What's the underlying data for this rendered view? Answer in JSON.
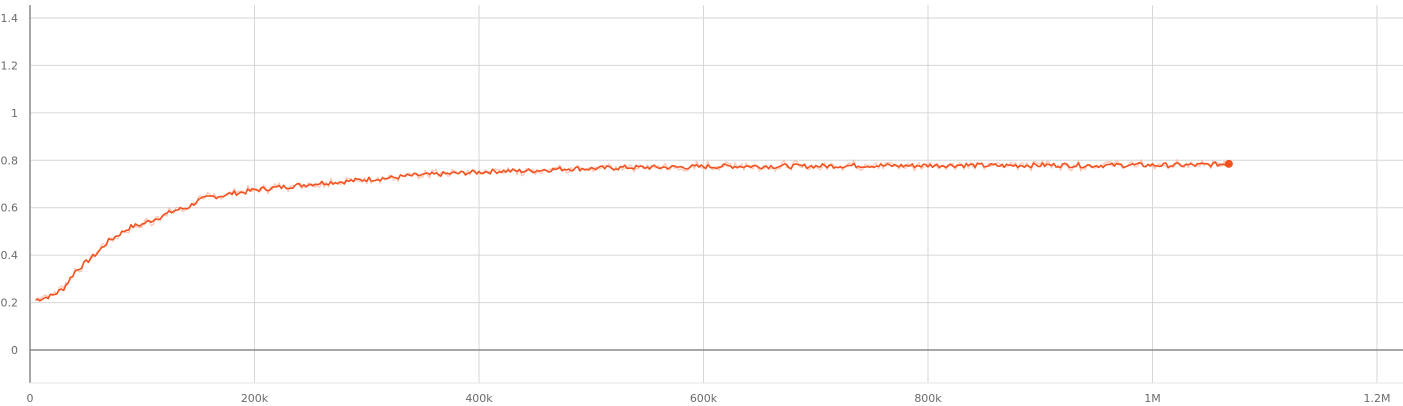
{
  "chart_data": {
    "type": "line",
    "title": "",
    "xlabel": "",
    "ylabel": "",
    "xlim": [
      0,
      1200000
    ],
    "ylim": [
      -0.15,
      1.45
    ],
    "grid": true,
    "legend": "none",
    "x_ticks": [
      {
        "value": 0,
        "label": "0"
      },
      {
        "value": 200000,
        "label": "200k"
      },
      {
        "value": 400000,
        "label": "400k"
      },
      {
        "value": 600000,
        "label": "600k"
      },
      {
        "value": 800000,
        "label": "800k"
      },
      {
        "value": 1000000,
        "label": "1M"
      },
      {
        "value": 1200000,
        "label": "1.2M"
      }
    ],
    "y_ticks": [
      {
        "value": 0,
        "label": "0"
      },
      {
        "value": 0.2,
        "label": "0.2"
      },
      {
        "value": 0.4,
        "label": "0.4"
      },
      {
        "value": 0.6,
        "label": "0.6"
      },
      {
        "value": 0.8,
        "label": "0.8"
      },
      {
        "value": 1,
        "label": "1"
      },
      {
        "value": 1.2,
        "label": "1.2"
      },
      {
        "value": 1.4,
        "label": "1.4"
      }
    ],
    "series": [
      {
        "color": "#f4511e",
        "raw_color": "#f9b6a0",
        "x": [
          5000,
          20000,
          30000,
          40000,
          50000,
          60000,
          70000,
          80000,
          90000,
          100000,
          110000,
          120000,
          130000,
          140000,
          150000,
          160000,
          170000,
          180000,
          190000,
          200000,
          220000,
          240000,
          260000,
          280000,
          300000,
          320000,
          340000,
          360000,
          380000,
          400000,
          420000,
          440000,
          460000,
          480000,
          500000,
          530000,
          560000,
          590000,
          620000,
          650000,
          680000,
          710000,
          740000,
          770000,
          800000,
          830000,
          860000,
          890000,
          920000,
          950000,
          980000,
          1010000,
          1040000,
          1068000
        ],
        "y": [
          0.21,
          0.23,
          0.26,
          0.33,
          0.37,
          0.41,
          0.46,
          0.49,
          0.52,
          0.53,
          0.55,
          0.57,
          0.59,
          0.6,
          0.63,
          0.645,
          0.65,
          0.66,
          0.665,
          0.675,
          0.685,
          0.695,
          0.705,
          0.71,
          0.72,
          0.725,
          0.735,
          0.74,
          0.745,
          0.75,
          0.755,
          0.755,
          0.76,
          0.765,
          0.765,
          0.77,
          0.77,
          0.772,
          0.775,
          0.775,
          0.775,
          0.776,
          0.778,
          0.777,
          0.778,
          0.78,
          0.777,
          0.779,
          0.78,
          0.778,
          0.78,
          0.779,
          0.78,
          0.785
        ]
      }
    ]
  }
}
